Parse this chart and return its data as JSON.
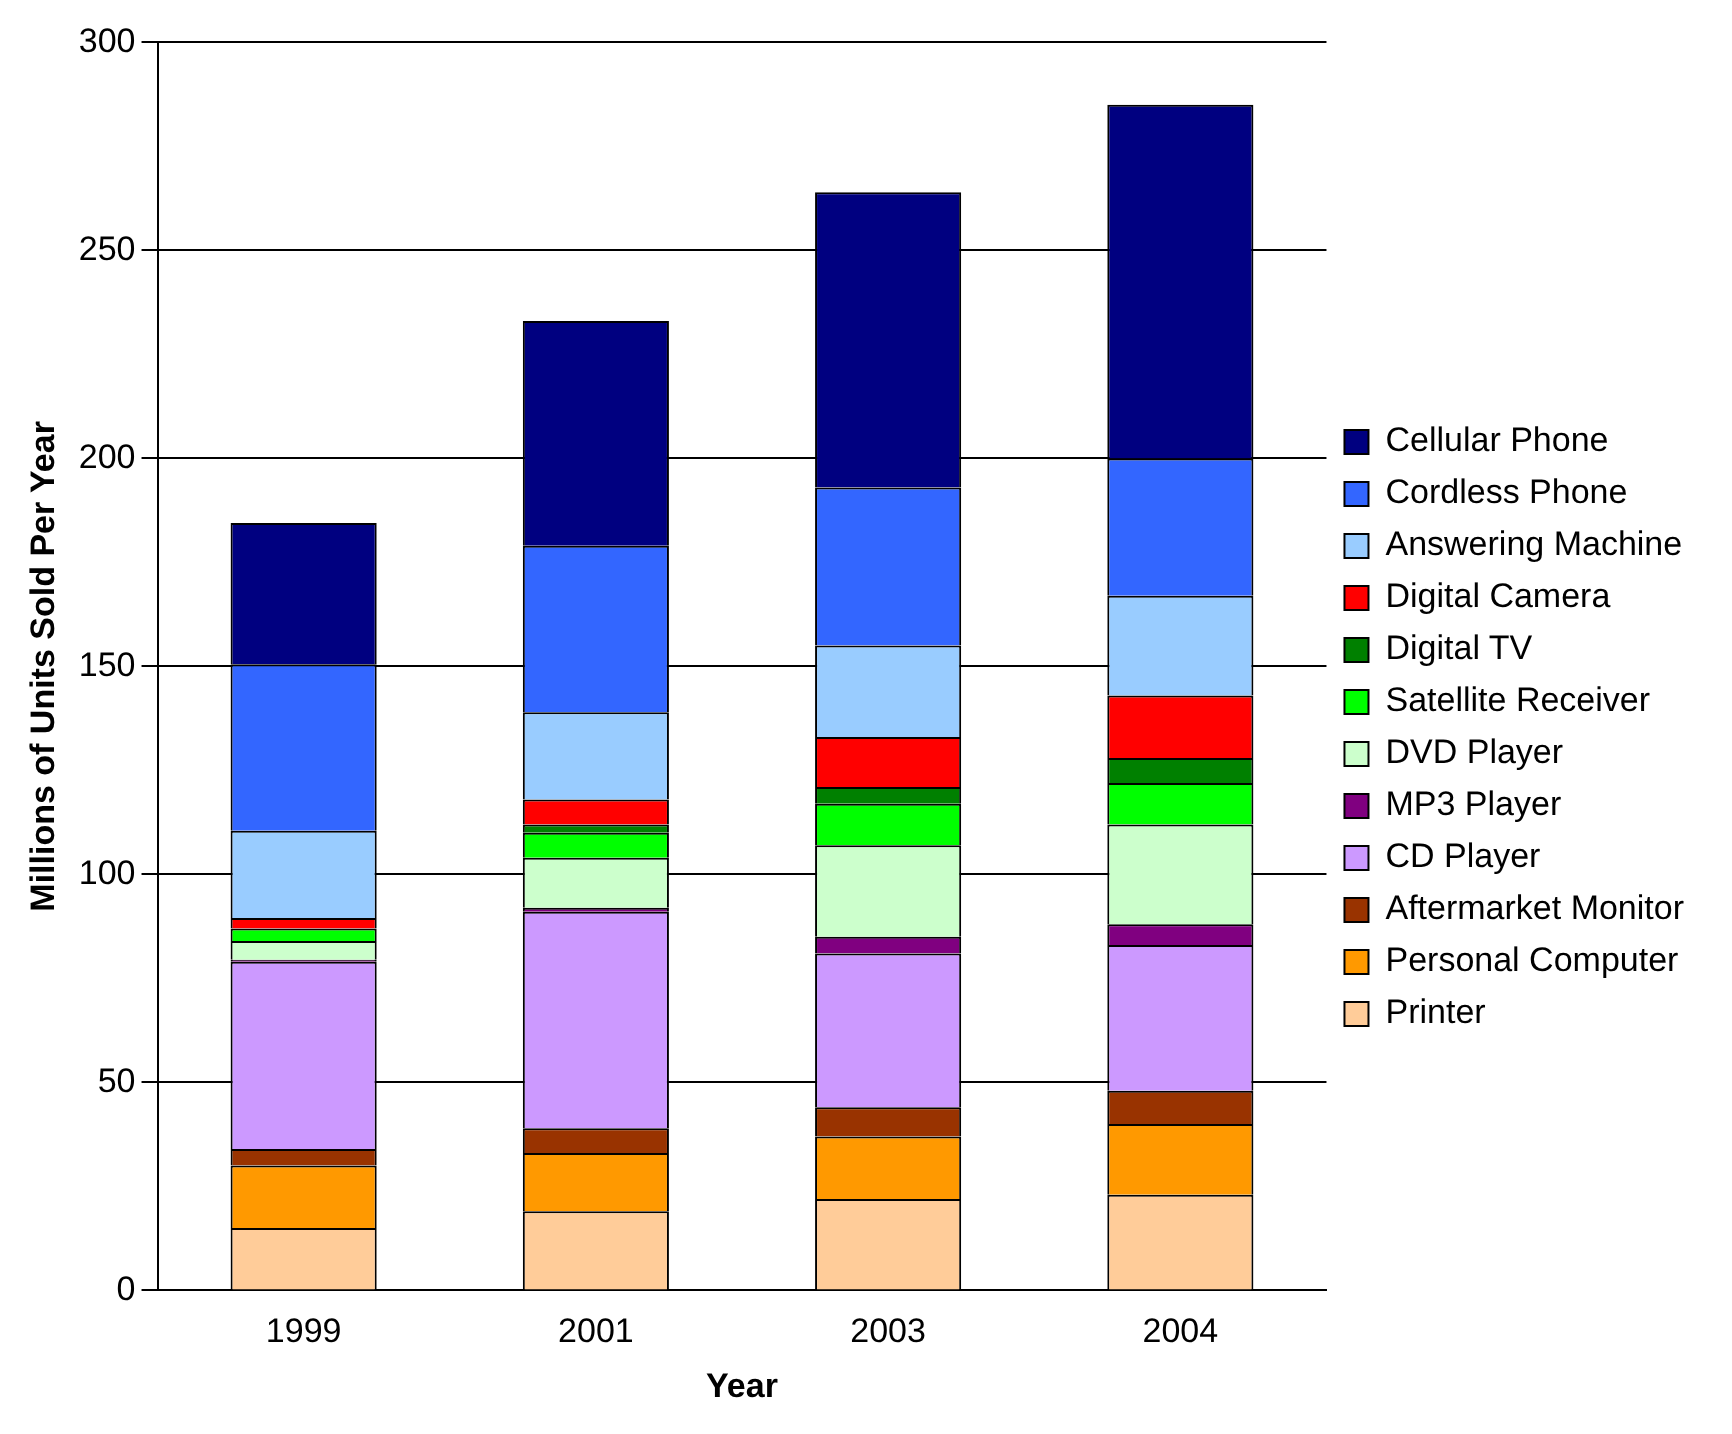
{
  "chart_data": {
    "type": "bar",
    "stacked": true,
    "xlabel": "Year",
    "ylabel": "Millions of Units Sold Per Year",
    "categories": [
      "1999",
      "2001",
      "2003",
      "2004"
    ],
    "ylim": [
      0,
      300
    ],
    "yticks": [
      0,
      50,
      100,
      150,
      200,
      250,
      300
    ],
    "grid": "y",
    "legend": "right",
    "series": [
      {
        "name": "Printer",
        "color": "#ffcc99",
        "values": [
          15,
          19,
          22,
          23
        ]
      },
      {
        "name": "Personal Computer",
        "color": "#ff9900",
        "values": [
          15,
          14,
          15,
          17
        ]
      },
      {
        "name": "Aftermarket Monitor",
        "color": "#993300",
        "values": [
          4,
          6,
          7,
          8
        ]
      },
      {
        "name": "CD Player",
        "color": "#cc99ff",
        "values": [
          45,
          52,
          37,
          35
        ]
      },
      {
        "name": "MP3 Player",
        "color": "#800080",
        "values": [
          0.5,
          1,
          4,
          5
        ]
      },
      {
        "name": "DVD Player",
        "color": "#ccffcc",
        "values": [
          4.5,
          12,
          22,
          24
        ]
      },
      {
        "name": "Satellite Receiver",
        "color": "#00ff00",
        "values": [
          3,
          6,
          10,
          10
        ]
      },
      {
        "name": "Digital TV",
        "color": "#008000",
        "values": [
          0,
          2,
          4,
          6
        ]
      },
      {
        "name": "Digital Camera",
        "color": "#ff0000",
        "values": [
          2.5,
          6,
          12,
          15
        ]
      },
      {
        "name": "Answering Machine",
        "color": "#99ccff",
        "values": [
          21,
          21,
          22,
          24
        ]
      },
      {
        "name": "Cordless Phone",
        "color": "#3366ff",
        "values": [
          40,
          40,
          38,
          33
        ]
      },
      {
        "name": "Cellular Phone",
        "color": "#000080",
        "values": [
          34,
          54,
          71,
          85
        ]
      }
    ]
  }
}
